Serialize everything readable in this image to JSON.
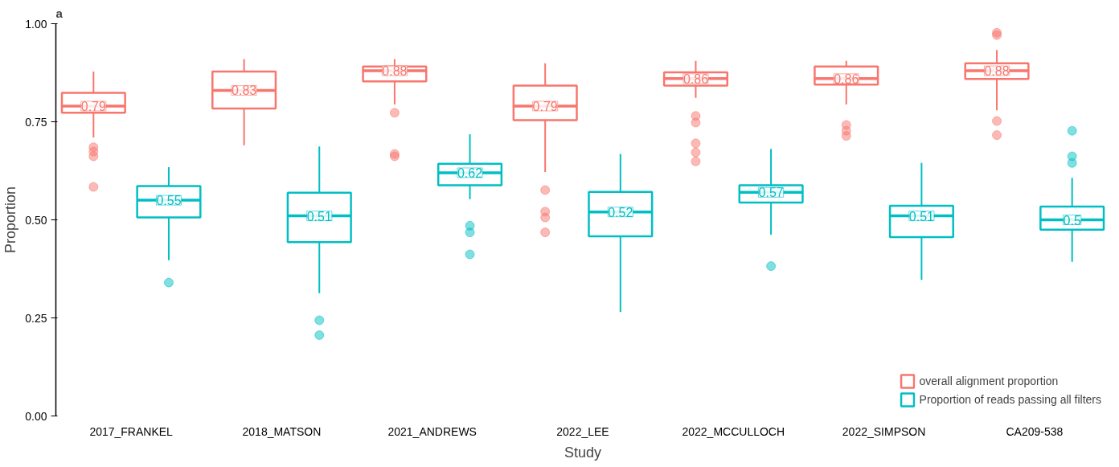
{
  "chart_data": {
    "type": "box",
    "title": "a",
    "xlabel": "Study",
    "ylabel": "Proportion",
    "categories": [
      "2017_FRANKEL",
      "2018_MATSON",
      "2021_ANDREWS",
      "2022_LEE",
      "2022_MCCULLOCH",
      "2022_SIMPSON",
      "CA209-538"
    ],
    "ylim": [
      0,
      1.0
    ],
    "yticks": [
      {
        "value": 0,
        "label": "0.00"
      },
      {
        "value": 0.25,
        "label": "0.25"
      },
      {
        "value": 0.5,
        "label": "0.50"
      },
      {
        "value": 0.75,
        "label": "0.75"
      },
      {
        "value": 1.0,
        "label": "1.00"
      }
    ],
    "grid": false,
    "legend": "bottom right",
    "marker": "circle",
    "series": [
      {
        "name": "overall alignment proportion",
        "color": "#f8766d",
        "value_labels": [
          "0.79",
          "0.83",
          "0.88",
          "0.79",
          "0.86",
          "0.86",
          "0.88"
        ],
        "boxes": [
          {
            "low": 0.71,
            "q1": 0.773,
            "median": 0.79,
            "q3": 0.824,
            "high": 0.878,
            "outliers": [
              0.685,
              0.674,
              0.662,
              0.584
            ]
          },
          {
            "low": 0.69,
            "q1": 0.784,
            "median": 0.83,
            "q3": 0.878,
            "high": 0.91
          },
          {
            "low": 0.794,
            "q1": 0.853,
            "median": 0.88,
            "q3": 0.891,
            "high": 0.91,
            "outliers": [
              0.773,
              0.668,
              0.662
            ]
          },
          {
            "low": 0.622,
            "q1": 0.754,
            "median": 0.79,
            "q3": 0.842,
            "high": 0.899,
            "outliers": [
              0.576,
              0.521,
              0.506,
              0.468
            ]
          },
          {
            "low": 0.811,
            "q1": 0.842,
            "median": 0.86,
            "q3": 0.876,
            "high": 0.905,
            "outliers": [
              0.765,
              0.748,
              0.695,
              0.672,
              0.649
            ]
          },
          {
            "low": 0.794,
            "q1": 0.845,
            "median": 0.86,
            "q3": 0.891,
            "high": 0.905,
            "outliers": [
              0.742,
              0.727,
              0.714
            ]
          },
          {
            "low": 0.779,
            "q1": 0.859,
            "median": 0.88,
            "q3": 0.899,
            "high": 0.933,
            "outliers": [
              0.977,
              0.971,
              0.752,
              0.716
            ]
          }
        ]
      },
      {
        "name": "Proportion of reads passing all filters",
        "color": "#00bfc4",
        "value_labels": [
          "0.55",
          "0.51",
          "0.62",
          "0.52",
          "0.57",
          "0.51",
          "0.5"
        ],
        "boxes": [
          {
            "low": 0.397,
            "q1": 0.506,
            "median": 0.55,
            "q3": 0.586,
            "high": 0.634,
            "outliers": [
              0.34
            ]
          },
          {
            "low": 0.313,
            "q1": 0.443,
            "median": 0.51,
            "q3": 0.569,
            "high": 0.687,
            "outliers": [
              0.244,
              0.206
            ]
          },
          {
            "low": 0.553,
            "q1": 0.588,
            "median": 0.62,
            "q3": 0.643,
            "high": 0.718,
            "outliers": [
              0.485,
              0.468,
              0.412
            ]
          },
          {
            "low": 0.265,
            "q1": 0.458,
            "median": 0.52,
            "q3": 0.571,
            "high": 0.668
          },
          {
            "low": 0.462,
            "q1": 0.544,
            "median": 0.57,
            "q3": 0.588,
            "high": 0.681,
            "outliers": [
              0.382
            ]
          },
          {
            "low": 0.347,
            "q1": 0.456,
            "median": 0.51,
            "q3": 0.536,
            "high": 0.645
          },
          {
            "low": 0.393,
            "q1": 0.475,
            "median": 0.5,
            "q3": 0.534,
            "high": 0.607,
            "outliers": [
              0.727,
              0.662,
              0.645
            ]
          }
        ]
      }
    ]
  }
}
